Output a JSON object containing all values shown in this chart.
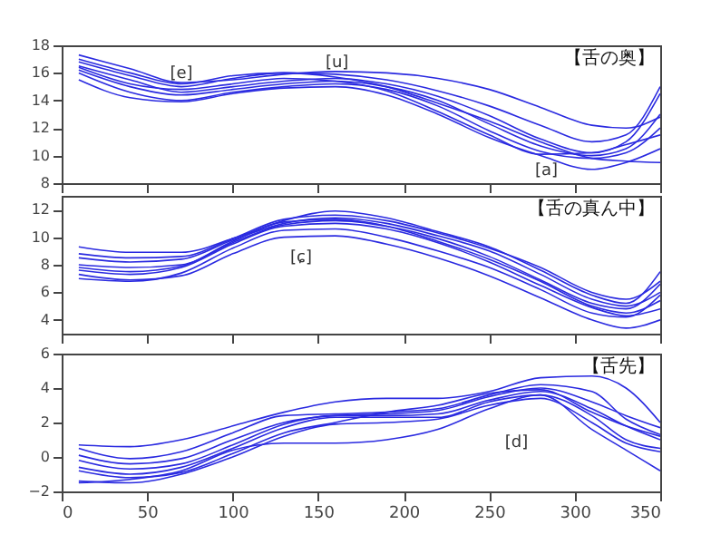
{
  "chart_data": [
    {
      "type": "line",
      "x": [
        10,
        40,
        70,
        100,
        130,
        160,
        190,
        220,
        250,
        280,
        310,
        330,
        350
      ],
      "xlim": [
        0,
        350
      ],
      "xticks": [
        0,
        50,
        100,
        150,
        200,
        250,
        300,
        350
      ],
      "ylim": [
        8,
        18
      ],
      "yticks": [
        8,
        10,
        12,
        14,
        16,
        18
      ],
      "tick_labels": "y",
      "annotations": [
        "【舌の奥】",
        "[e]",
        "[u]",
        "[a]"
      ],
      "series": [
        {
          "color": "#2a2ae0",
          "values": [
            17.3,
            16.3,
            15.3,
            15.5,
            15.9,
            16.1,
            16.0,
            15.6,
            14.8,
            13.5,
            12.2,
            12.0,
            12.8
          ]
        },
        {
          "color": "#2a2ae0",
          "values": [
            16.8,
            15.8,
            15.0,
            15.6,
            16.0,
            15.9,
            15.5,
            14.7,
            13.6,
            12.2,
            11.0,
            11.5,
            15.0
          ]
        },
        {
          "color": "#2a2ae0",
          "values": [
            16.5,
            15.5,
            14.6,
            15.0,
            15.4,
            15.6,
            15.2,
            14.3,
            12.9,
            11.2,
            10.2,
            11.0,
            14.5
          ]
        },
        {
          "color": "#2a2ae0",
          "values": [
            16.2,
            15.0,
            14.4,
            14.8,
            15.2,
            15.4,
            15.0,
            14.0,
            12.3,
            10.7,
            10.0,
            10.5,
            13.0
          ]
        },
        {
          "color": "#2a2ae0",
          "values": [
            16.0,
            14.6,
            14.0,
            14.6,
            15.0,
            15.2,
            14.8,
            13.6,
            11.8,
            10.3,
            9.8,
            10.2,
            12.0
          ]
        },
        {
          "color": "#2a2ae0",
          "values": [
            15.5,
            14.2,
            13.9,
            14.5,
            14.9,
            15.0,
            14.4,
            13.0,
            11.3,
            10.0,
            9.0,
            9.5,
            10.5
          ]
        },
        {
          "color": "#2a2ae0",
          "values": [
            16.4,
            15.2,
            14.8,
            15.2,
            15.6,
            15.4,
            14.7,
            13.2,
            11.5,
            10.1,
            10.2,
            10.8,
            11.5
          ]
        },
        {
          "color": "#2a2ae0",
          "values": [
            17.0,
            16.0,
            15.2,
            15.8,
            16.0,
            15.7,
            15.0,
            13.8,
            12.5,
            11.0,
            9.8,
            9.6,
            9.5
          ]
        }
      ]
    },
    {
      "type": "line",
      "x": [
        10,
        40,
        70,
        100,
        130,
        160,
        190,
        220,
        250,
        280,
        310,
        330,
        350
      ],
      "xlim": [
        0,
        350
      ],
      "xticks": [
        0,
        50,
        100,
        150,
        200,
        250,
        300,
        350
      ],
      "ylim": [
        3,
        13
      ],
      "yticks": [
        4,
        6,
        8,
        10,
        12
      ],
      "tick_labels": "y",
      "annotations": [
        "【舌の真ん中】",
        "[ɕ]"
      ],
      "series": [
        {
          "color": "#2a2ae0",
          "values": [
            9.3,
            8.9,
            8.9,
            9.9,
            11.2,
            11.9,
            11.4,
            10.4,
            9.3,
            7.6,
            5.8,
            5.2,
            7.5
          ]
        },
        {
          "color": "#2a2ae0",
          "values": [
            8.5,
            8.2,
            8.4,
            9.8,
            11.0,
            11.4,
            11.0,
            10.1,
            9.0,
            7.3,
            5.5,
            5.0,
            6.0
          ]
        },
        {
          "color": "#2a2ae0",
          "values": [
            8.0,
            7.8,
            8.0,
            9.6,
            10.9,
            11.2,
            10.8,
            9.9,
            8.6,
            6.9,
            5.2,
            4.8,
            6.6
          ]
        },
        {
          "color": "#2a2ae0",
          "values": [
            7.6,
            7.3,
            7.8,
            9.5,
            10.8,
            11.0,
            10.6,
            9.6,
            8.2,
            6.5,
            4.9,
            4.3,
            4.8
          ]
        },
        {
          "color": "#2a2ae0",
          "values": [
            7.0,
            6.8,
            7.4,
            9.2,
            10.5,
            10.6,
            10.0,
            9.0,
            7.8,
            6.2,
            4.5,
            4.2,
            5.8
          ]
        },
        {
          "color": "#2a2ae0",
          "values": [
            7.3,
            6.9,
            7.2,
            8.8,
            10.0,
            10.1,
            9.5,
            8.5,
            7.2,
            5.6,
            4.0,
            3.4,
            4.0
          ]
        },
        {
          "color": "#2a2ae0",
          "values": [
            8.8,
            8.5,
            8.6,
            9.9,
            11.3,
            11.6,
            11.2,
            10.3,
            9.2,
            7.8,
            6.0,
            5.5,
            6.8
          ]
        },
        {
          "color": "#2a2ae0",
          "values": [
            7.8,
            7.5,
            7.9,
            9.7,
            11.1,
            11.3,
            10.8,
            9.7,
            8.4,
            6.8,
            5.0,
            4.5,
            5.4
          ]
        }
      ]
    },
    {
      "type": "line",
      "x": [
        10,
        40,
        70,
        100,
        130,
        160,
        190,
        220,
        250,
        280,
        310,
        330,
        350
      ],
      "xlim": [
        0,
        350
      ],
      "xticks": [
        0,
        50,
        100,
        150,
        200,
        250,
        300,
        350
      ],
      "ylim": [
        -2,
        6
      ],
      "yticks": [
        -2,
        0,
        2,
        4,
        6
      ],
      "annotations": [
        "【舌先】",
        "[d]"
      ],
      "series": [
        {
          "color": "#2a2ae0",
          "values": [
            0.7,
            0.6,
            1.0,
            1.8,
            2.6,
            3.2,
            3.4,
            3.4,
            3.8,
            4.6,
            4.7,
            4.0,
            2.0
          ]
        },
        {
          "color": "#2a2ae0",
          "values": [
            0.5,
            -0.1,
            0.3,
            1.4,
            2.4,
            2.5,
            2.6,
            2.8,
            3.6,
            4.2,
            3.8,
            2.2,
            1.3
          ]
        },
        {
          "color": "#2a2ae0",
          "values": [
            0.1,
            -0.4,
            -0.1,
            1.0,
            2.0,
            2.4,
            2.5,
            2.7,
            3.5,
            4.0,
            3.2,
            2.4,
            1.7
          ]
        },
        {
          "color": "#2a2ae0",
          "values": [
            -0.2,
            -0.7,
            -0.4,
            0.7,
            1.9,
            2.4,
            2.4,
            2.5,
            3.3,
            3.8,
            2.8,
            1.8,
            1.0
          ]
        },
        {
          "color": "#2a2ae0",
          "values": [
            -0.6,
            -1.0,
            -0.6,
            0.5,
            1.7,
            2.3,
            2.3,
            2.3,
            3.2,
            3.6,
            2.4,
            1.0,
            0.5
          ]
        },
        {
          "color": "#2a2ae0",
          "values": [
            -1.4,
            -1.5,
            -1.0,
            0.0,
            1.2,
            1.9,
            2.0,
            2.2,
            3.0,
            3.4,
            2.0,
            0.8,
            0.3
          ]
        },
        {
          "color": "#2a2ae0",
          "values": [
            -1.5,
            -1.3,
            -0.8,
            0.4,
            0.8,
            0.8,
            1.0,
            1.6,
            2.8,
            3.6,
            1.6,
            0.4,
            -0.8
          ]
        },
        {
          "color": "#2a2ae0",
          "values": [
            -0.8,
            -1.2,
            -0.9,
            0.2,
            1.4,
            2.0,
            2.6,
            3.0,
            3.7,
            3.9,
            2.6,
            1.8,
            1.2
          ]
        }
      ]
    }
  ]
}
